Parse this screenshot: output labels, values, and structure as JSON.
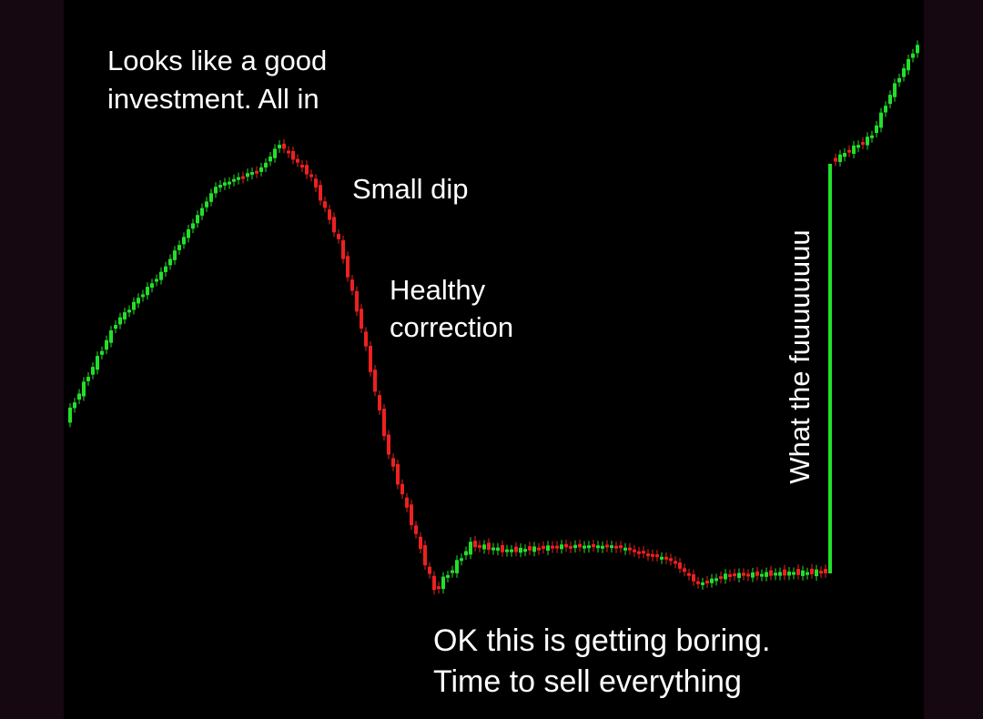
{
  "annotations": [
    {
      "lines": [
        "Looks like a good",
        "investment. All in"
      ]
    },
    {
      "lines": [
        "Small dip"
      ]
    },
    {
      "lines": [
        "Healthy",
        "correction"
      ]
    },
    {
      "lines": [
        "What the fuuuuuuuu"
      ]
    },
    {
      "lines": [
        "OK this is getting boring.",
        "Time to sell everything"
      ]
    }
  ]
}
